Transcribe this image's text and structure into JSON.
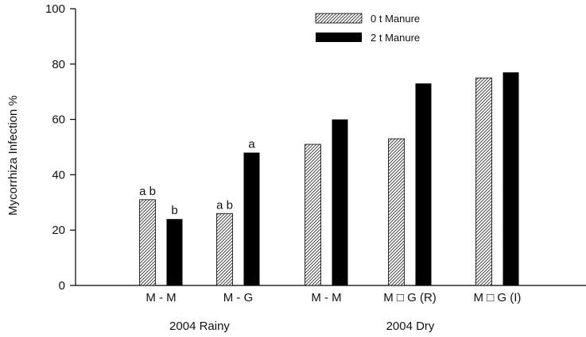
{
  "chart_data": {
    "type": "bar",
    "title": "",
    "ylabel": "Mycorrhiza Infection %",
    "xlabel": "",
    "ylim": [
      0,
      100
    ],
    "yticks": [
      0,
      20,
      40,
      60,
      80,
      100
    ],
    "categories": [
      "M - M",
      "M - G",
      "M - M",
      "M □ G (R)",
      "M □ G (I)"
    ],
    "groups": [
      {
        "label": "2004 Rainy",
        "categories": [
          0,
          1
        ]
      },
      {
        "label": "2004 Dry",
        "categories": [
          2,
          3,
          4
        ]
      }
    ],
    "series": [
      {
        "name": "0 t Manure",
        "pattern": "hatched",
        "values": [
          31,
          26,
          51,
          53,
          75
        ],
        "labels": [
          "a b",
          "a b",
          "",
          "",
          ""
        ]
      },
      {
        "name": "2 t Manure",
        "pattern": "solid",
        "color": "#000000",
        "values": [
          24,
          48,
          60,
          73,
          77
        ],
        "labels": [
          "b",
          "a",
          "",
          "",
          ""
        ]
      }
    ],
    "legend": {
      "position": "top-center"
    },
    "grid": false
  }
}
